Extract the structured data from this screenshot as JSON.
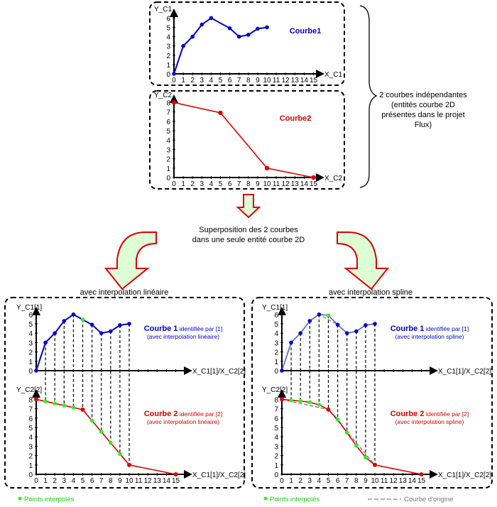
{
  "colors": {
    "blue": "#0000cc",
    "red": "#dd0000",
    "green": "#33ee22",
    "arrow_fill": "#ddffd6",
    "arrow_stroke": "#dd0000",
    "gray": "#888888",
    "axis": "#000000"
  },
  "top": {
    "c1": {
      "ylabel": "Y_C1",
      "xlabel": "X_C1",
      "title": "Courbe1",
      "yticks": [
        "0",
        "1",
        "2",
        "3",
        "4",
        "5",
        "6"
      ],
      "points": [
        [
          0,
          0
        ],
        [
          1,
          3
        ],
        [
          2,
          4
        ],
        [
          3,
          5.3
        ],
        [
          4,
          6
        ],
        [
          6,
          4.9
        ],
        [
          7,
          4
        ],
        [
          8,
          4.2
        ],
        [
          9,
          4.85
        ],
        [
          10,
          5
        ]
      ]
    },
    "c2": {
      "ylabel": "Y_C2",
      "xlabel": "X_C2",
      "title": "Courbe2",
      "yticks": [
        "0",
        "1",
        "2",
        "3",
        "4",
        "5",
        "6",
        "7",
        "8"
      ],
      "points": [
        [
          0,
          8
        ],
        [
          5,
          6.9
        ],
        [
          10,
          1
        ],
        [
          15,
          0
        ]
      ]
    },
    "xticks": [
      "0",
      "1",
      "2",
      "3",
      "4",
      "5",
      "6",
      "7",
      "8",
      "9",
      "10",
      "11",
      "12",
      "13",
      "14",
      "15"
    ]
  },
  "brace_text": [
    "2 courbes indépendantes",
    "(entités courbe 2D",
    "présentes dans le projet",
    "Flux)"
  ],
  "middle_text": [
    "Superposition des 2 courbes",
    "dans une seule entité courbe 2D"
  ],
  "panels": [
    {
      "title": "avec interpolation linéaire",
      "y1label": "Y_C1[1]",
      "y2label": "Y_C2[2]",
      "xlabel": "X_C1[1]/X_C2[2]",
      "c1_label_bold": "Courbe 1",
      "c1_label_rest": " identifiée par [1]",
      "c1_sub": "(avec interpolation linéaire)",
      "c2_label_bold": "Courbe 2",
      "c2_label_rest": " identifiée par [2]",
      "c2_sub": "(avec interpolation linéaire)",
      "c1_interp": [
        [
          5,
          5.45
        ]
      ],
      "c2_interp": [
        [
          1,
          7.78
        ],
        [
          2,
          7.56
        ],
        [
          3,
          7.34
        ],
        [
          4,
          7.12
        ],
        [
          6,
          5.72
        ],
        [
          7,
          4.54
        ],
        [
          8,
          3.36
        ],
        [
          9,
          2.18
        ]
      ],
      "c2_curve": [
        [
          0,
          8
        ],
        [
          1,
          7.78
        ],
        [
          2,
          7.56
        ],
        [
          3,
          7.34
        ],
        [
          4,
          7.12
        ],
        [
          5,
          6.9
        ],
        [
          6,
          5.72
        ],
        [
          7,
          4.54
        ],
        [
          8,
          3.36
        ],
        [
          9,
          2.18
        ],
        [
          10,
          1
        ],
        [
          15,
          0
        ]
      ],
      "c1_curve": [
        [
          0,
          0
        ],
        [
          1,
          3
        ],
        [
          2,
          4
        ],
        [
          3,
          5.3
        ],
        [
          4,
          6
        ],
        [
          5,
          5.45
        ],
        [
          6,
          4.9
        ],
        [
          7,
          4
        ],
        [
          8,
          4.2
        ],
        [
          9,
          4.85
        ],
        [
          10,
          5
        ]
      ],
      "legend_points": "Points interpolés"
    },
    {
      "title": "avec interpolation spline",
      "y1label": "Y_C1[1]",
      "y2label": "Y_C2[2]",
      "xlabel": "X_C1[1]/X_C2[2]",
      "c1_label_bold": "Courbe 1",
      "c1_label_rest": " identifiée par [1]",
      "c1_sub": "(avec interpolation spline)",
      "c2_label_bold": "Courbe 2",
      "c2_label_rest": " identifiée par [2]",
      "c2_sub": "(avec interpolation spline)",
      "c1_interp": [
        [
          5,
          5.9
        ]
      ],
      "c2_interp": [
        [
          1,
          7.9
        ],
        [
          2,
          7.82
        ],
        [
          3,
          7.7
        ],
        [
          4,
          7.42
        ],
        [
          6,
          5.85
        ],
        [
          7,
          4.45
        ],
        [
          8,
          3.05
        ],
        [
          9,
          1.8
        ]
      ],
      "c2_curve": [
        [
          0,
          8
        ],
        [
          1,
          7.9
        ],
        [
          2,
          7.82
        ],
        [
          3,
          7.7
        ],
        [
          4,
          7.42
        ],
        [
          5,
          6.9
        ],
        [
          6,
          5.85
        ],
        [
          7,
          4.45
        ],
        [
          8,
          3.05
        ],
        [
          9,
          1.8
        ],
        [
          10,
          1
        ],
        [
          15,
          0
        ]
      ],
      "c1_curve": [
        [
          0,
          0
        ],
        [
          1,
          3
        ],
        [
          2,
          4
        ],
        [
          3,
          5.3
        ],
        [
          4,
          6
        ],
        [
          5,
          5.9
        ],
        [
          6,
          4.9
        ],
        [
          7,
          4
        ],
        [
          8,
          4.2
        ],
        [
          9,
          4.85
        ],
        [
          10,
          5
        ]
      ],
      "legend_points": "Points interpolés",
      "legend_origin": "Courbe d'origine"
    }
  ],
  "c1_points": [
    [
      0,
      0
    ],
    [
      1,
      3
    ],
    [
      2,
      4
    ],
    [
      3,
      5.3
    ],
    [
      4,
      6
    ],
    [
      6,
      4.9
    ],
    [
      7,
      4
    ],
    [
      8,
      4.2
    ],
    [
      9,
      4.85
    ],
    [
      10,
      5
    ]
  ],
  "c2_points": [
    [
      0,
      8
    ],
    [
      5,
      6.9
    ],
    [
      10,
      1
    ],
    [
      15,
      0
    ]
  ],
  "xticks": [
    "0",
    "1",
    "2",
    "3",
    "4",
    "5",
    "6",
    "7",
    "8",
    "9",
    "10",
    "11",
    "12",
    "13",
    "14",
    "15"
  ]
}
